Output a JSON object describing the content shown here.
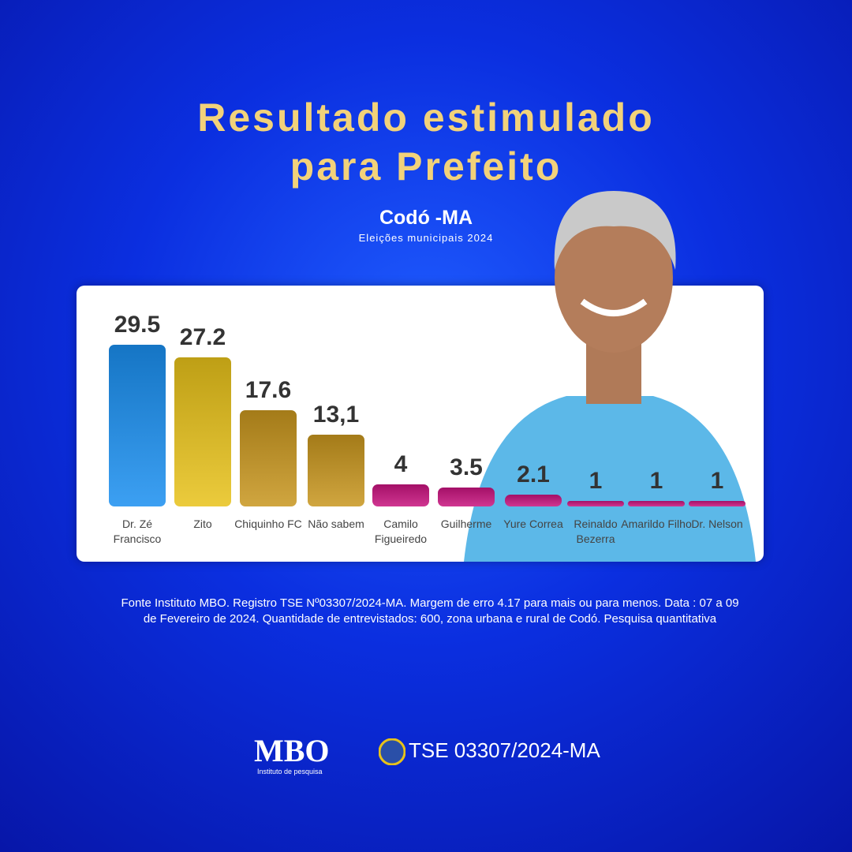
{
  "chart_data": {
    "type": "bar",
    "title": "Resultado estimulado para Prefeito",
    "subtitle": "Codó -MA",
    "caption": "Eleições municipais 2024",
    "categories": [
      "Dr. Zé Francisco",
      "Zito",
      "Chiquinho FC",
      "Não sabem",
      "Camilo Figueiredo",
      "Guilherme",
      "Yure Correa",
      "Reinaldo Bezerra",
      "Amarildo Filho",
      "Dr. Nelson"
    ],
    "values": [
      29.5,
      27.2,
      17.6,
      13.1,
      4,
      3.5,
      2.1,
      1,
      1,
      1
    ],
    "value_labels": [
      "29.5",
      "27.2",
      "17.6",
      "13,1",
      "4",
      "3.5",
      "2.1",
      "1",
      "1",
      "1"
    ],
    "colors": [
      "#1a8ff0",
      "#e8c21a",
      "#c8961e",
      "#c8961e",
      "#c8137e",
      "#c8137e",
      "#c8137e",
      "#c8137e",
      "#c8137e",
      "#c8137e"
    ]
  },
  "footer": {
    "source": "Fonte Instituto MBO. Registro TSE Nº03307/2024-MA. Margem de erro 4.17 para mais ou para menos. Data : 07 a 09 de Fevereiro de 2024. Quantidade de entrevistados: 600, zona urbana e rural de Codó. Pesquisa quantitativa",
    "logo": "MBO",
    "logo_caption": "Instituto de pesquisa",
    "registry": "TSE 03307/2024-MA"
  }
}
